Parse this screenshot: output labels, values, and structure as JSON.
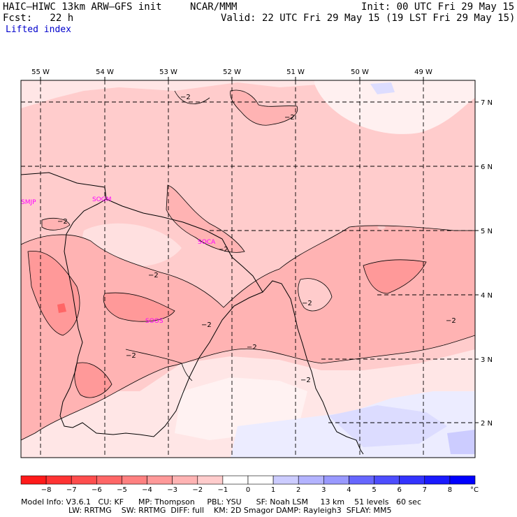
{
  "header": {
    "model": "HAIC–HIWC 13km ARW–GFS init",
    "center": "NCAR/MMM",
    "init": "Init: 00 UTC Fri 29 May 15",
    "fcst": "Fcst:   22 h",
    "valid": "Valid: 22 UTC Fri 29 May 15 (19 LST Fri 29 May 15)",
    "field": "Lifted index"
  },
  "axes": {
    "lon_labels": [
      "55 W",
      "54 W",
      "53 W",
      "52 W",
      "51 W",
      "50 W",
      "49 W"
    ],
    "lat_labels": [
      "7 N",
      "6 N",
      "5 N",
      "4 N",
      "3 N",
      "2 N"
    ]
  },
  "stations": [
    "SMJP",
    "SOGM",
    "SOCA",
    "SOOS"
  ],
  "contour_labels": [
    "−2",
    "−2",
    "−2",
    "−2",
    "−2",
    "−2",
    "−2",
    "−2",
    "−2",
    "−2",
    "−2"
  ],
  "colorbar": {
    "labels": [
      "−8",
      "−7",
      "−6",
      "−5",
      "−4",
      "−3",
      "−2",
      "−1",
      "0",
      "1",
      "2",
      "3",
      "4",
      "5",
      "6",
      "7",
      "8"
    ],
    "unit": "°C",
    "colors": [
      "#ff1a1a",
      "#ff3333",
      "#ff4d4d",
      "#ff6666",
      "#ff8080",
      "#ff9999",
      "#ffb3b3",
      "#ffcccc",
      "#ffffff",
      "#ffffff",
      "#ccccff",
      "#b3b3ff",
      "#9999ff",
      "#6666ff",
      "#4d4dff",
      "#3333ff",
      "#1a1aff",
      "#0000ff"
    ]
  },
  "footer": {
    "line1": "Model Info: V3.6.1   CU: KF      MP: Thompson     PBL: YSU      SF: Noah LSM     13 km    51 levels   60 sec",
    "line2": "LW: RRTMG    SW: RRTMG  DIFF: full    KM: 2D Smagor DAMP: Rayleigh3  SFLAY: MM5"
  }
}
